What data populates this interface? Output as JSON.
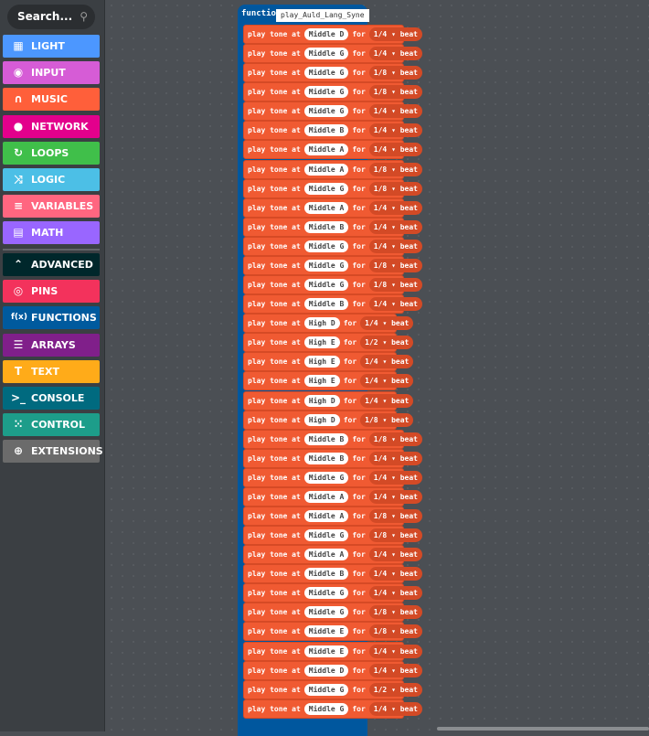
{
  "sidebar": {
    "search_placeholder": "Search...",
    "categories": [
      {
        "label": "LIGHT",
        "icon": "grid-icon",
        "glyph": "▦",
        "color": "#4c97ff"
      },
      {
        "label": "INPUT",
        "icon": "target-icon",
        "glyph": "◉",
        "color": "#d65cd6"
      },
      {
        "label": "MUSIC",
        "icon": "headphones-icon",
        "glyph": "∩",
        "color": "#ff5f3a"
      },
      {
        "label": "NETWORK",
        "icon": "chat-icon",
        "glyph": "●",
        "color": "#e3008c"
      },
      {
        "label": "LOOPS",
        "icon": "refresh-icon",
        "glyph": "↻",
        "color": "#40bf4a"
      },
      {
        "label": "LOGIC",
        "icon": "shuffle-icon",
        "glyph": "⤨",
        "color": "#4cbfe6"
      },
      {
        "label": "VARIABLES",
        "icon": "list-icon",
        "glyph": "≡",
        "color": "#ff6680"
      },
      {
        "label": "MATH",
        "icon": "calculator-icon",
        "glyph": "▤",
        "color": "#9966ff"
      }
    ],
    "advanced": [
      {
        "label": "ADVANCED",
        "icon": "chevron-up-icon",
        "glyph": "⌃",
        "color": "#00272b"
      },
      {
        "label": "PINS",
        "icon": "pins-icon",
        "glyph": "◎",
        "color": "#f3325c"
      },
      {
        "label": "FUNCTIONS",
        "icon": "function-icon",
        "glyph": "f(x)",
        "color": "#005a9e"
      },
      {
        "label": "ARRAYS",
        "icon": "list-numbered-icon",
        "glyph": "☰",
        "color": "#801f8a"
      },
      {
        "label": "TEXT",
        "icon": "text-icon",
        "glyph": "T",
        "color": "#ffab19"
      },
      {
        "label": "CONSOLE",
        "icon": "terminal-icon",
        "glyph": ">_",
        "color": "#006a7f"
      },
      {
        "label": "CONTROL",
        "icon": "spinner-icon",
        "glyph": "⁙",
        "color": "#1d9d8a"
      },
      {
        "label": "EXTENSIONS",
        "icon": "plus-circle-icon",
        "glyph": "⊕",
        "color": "#6b6b6b"
      }
    ]
  },
  "function": {
    "keyword": "function",
    "name": "play_Auld_Lang_Syne"
  },
  "block": {
    "prefix": "play tone at",
    "for": "for",
    "unit": "beat",
    "color": "#f05a32"
  },
  "rows": [
    [
      "Middle D",
      "1/4"
    ],
    [
      "Middle G",
      "1/4"
    ],
    [
      "Middle G",
      "1/8"
    ],
    [
      "Middle G",
      "1/8"
    ],
    [
      "Middle G",
      "1/4"
    ],
    [
      "Middle B",
      "1/4"
    ],
    [
      "Middle A",
      "1/4"
    ],
    [
      "Middle A",
      "1/8"
    ],
    [
      "Middle G",
      "1/8"
    ],
    [
      "Middle A",
      "1/4"
    ],
    [
      "Middle B",
      "1/4"
    ],
    [
      "Middle G",
      "1/4"
    ],
    [
      "Middle G",
      "1/8"
    ],
    [
      "Middle G",
      "1/8"
    ],
    [
      "Middle B",
      "1/4"
    ],
    [
      "High D",
      "1/4"
    ],
    [
      "High E",
      "1/2"
    ],
    [
      "High E",
      "1/4"
    ],
    [
      "High E",
      "1/4"
    ],
    [
      "High D",
      "1/4"
    ],
    [
      "High D",
      "1/8"
    ],
    [
      "Middle B",
      "1/8"
    ],
    [
      "Middle B",
      "1/4"
    ],
    [
      "Middle G",
      "1/4"
    ],
    [
      "Middle A",
      "1/4"
    ],
    [
      "Middle A",
      "1/8"
    ],
    [
      "Middle G",
      "1/8"
    ],
    [
      "Middle A",
      "1/4"
    ],
    [
      "Middle B",
      "1/4"
    ],
    [
      "Middle G",
      "1/4"
    ],
    [
      "Middle G",
      "1/8"
    ],
    [
      "Middle E",
      "1/8"
    ],
    [
      "Middle E",
      "1/4"
    ],
    [
      "Middle D",
      "1/4"
    ],
    [
      "Middle G",
      "1/2"
    ],
    [
      "Middle G",
      "1/4"
    ]
  ]
}
